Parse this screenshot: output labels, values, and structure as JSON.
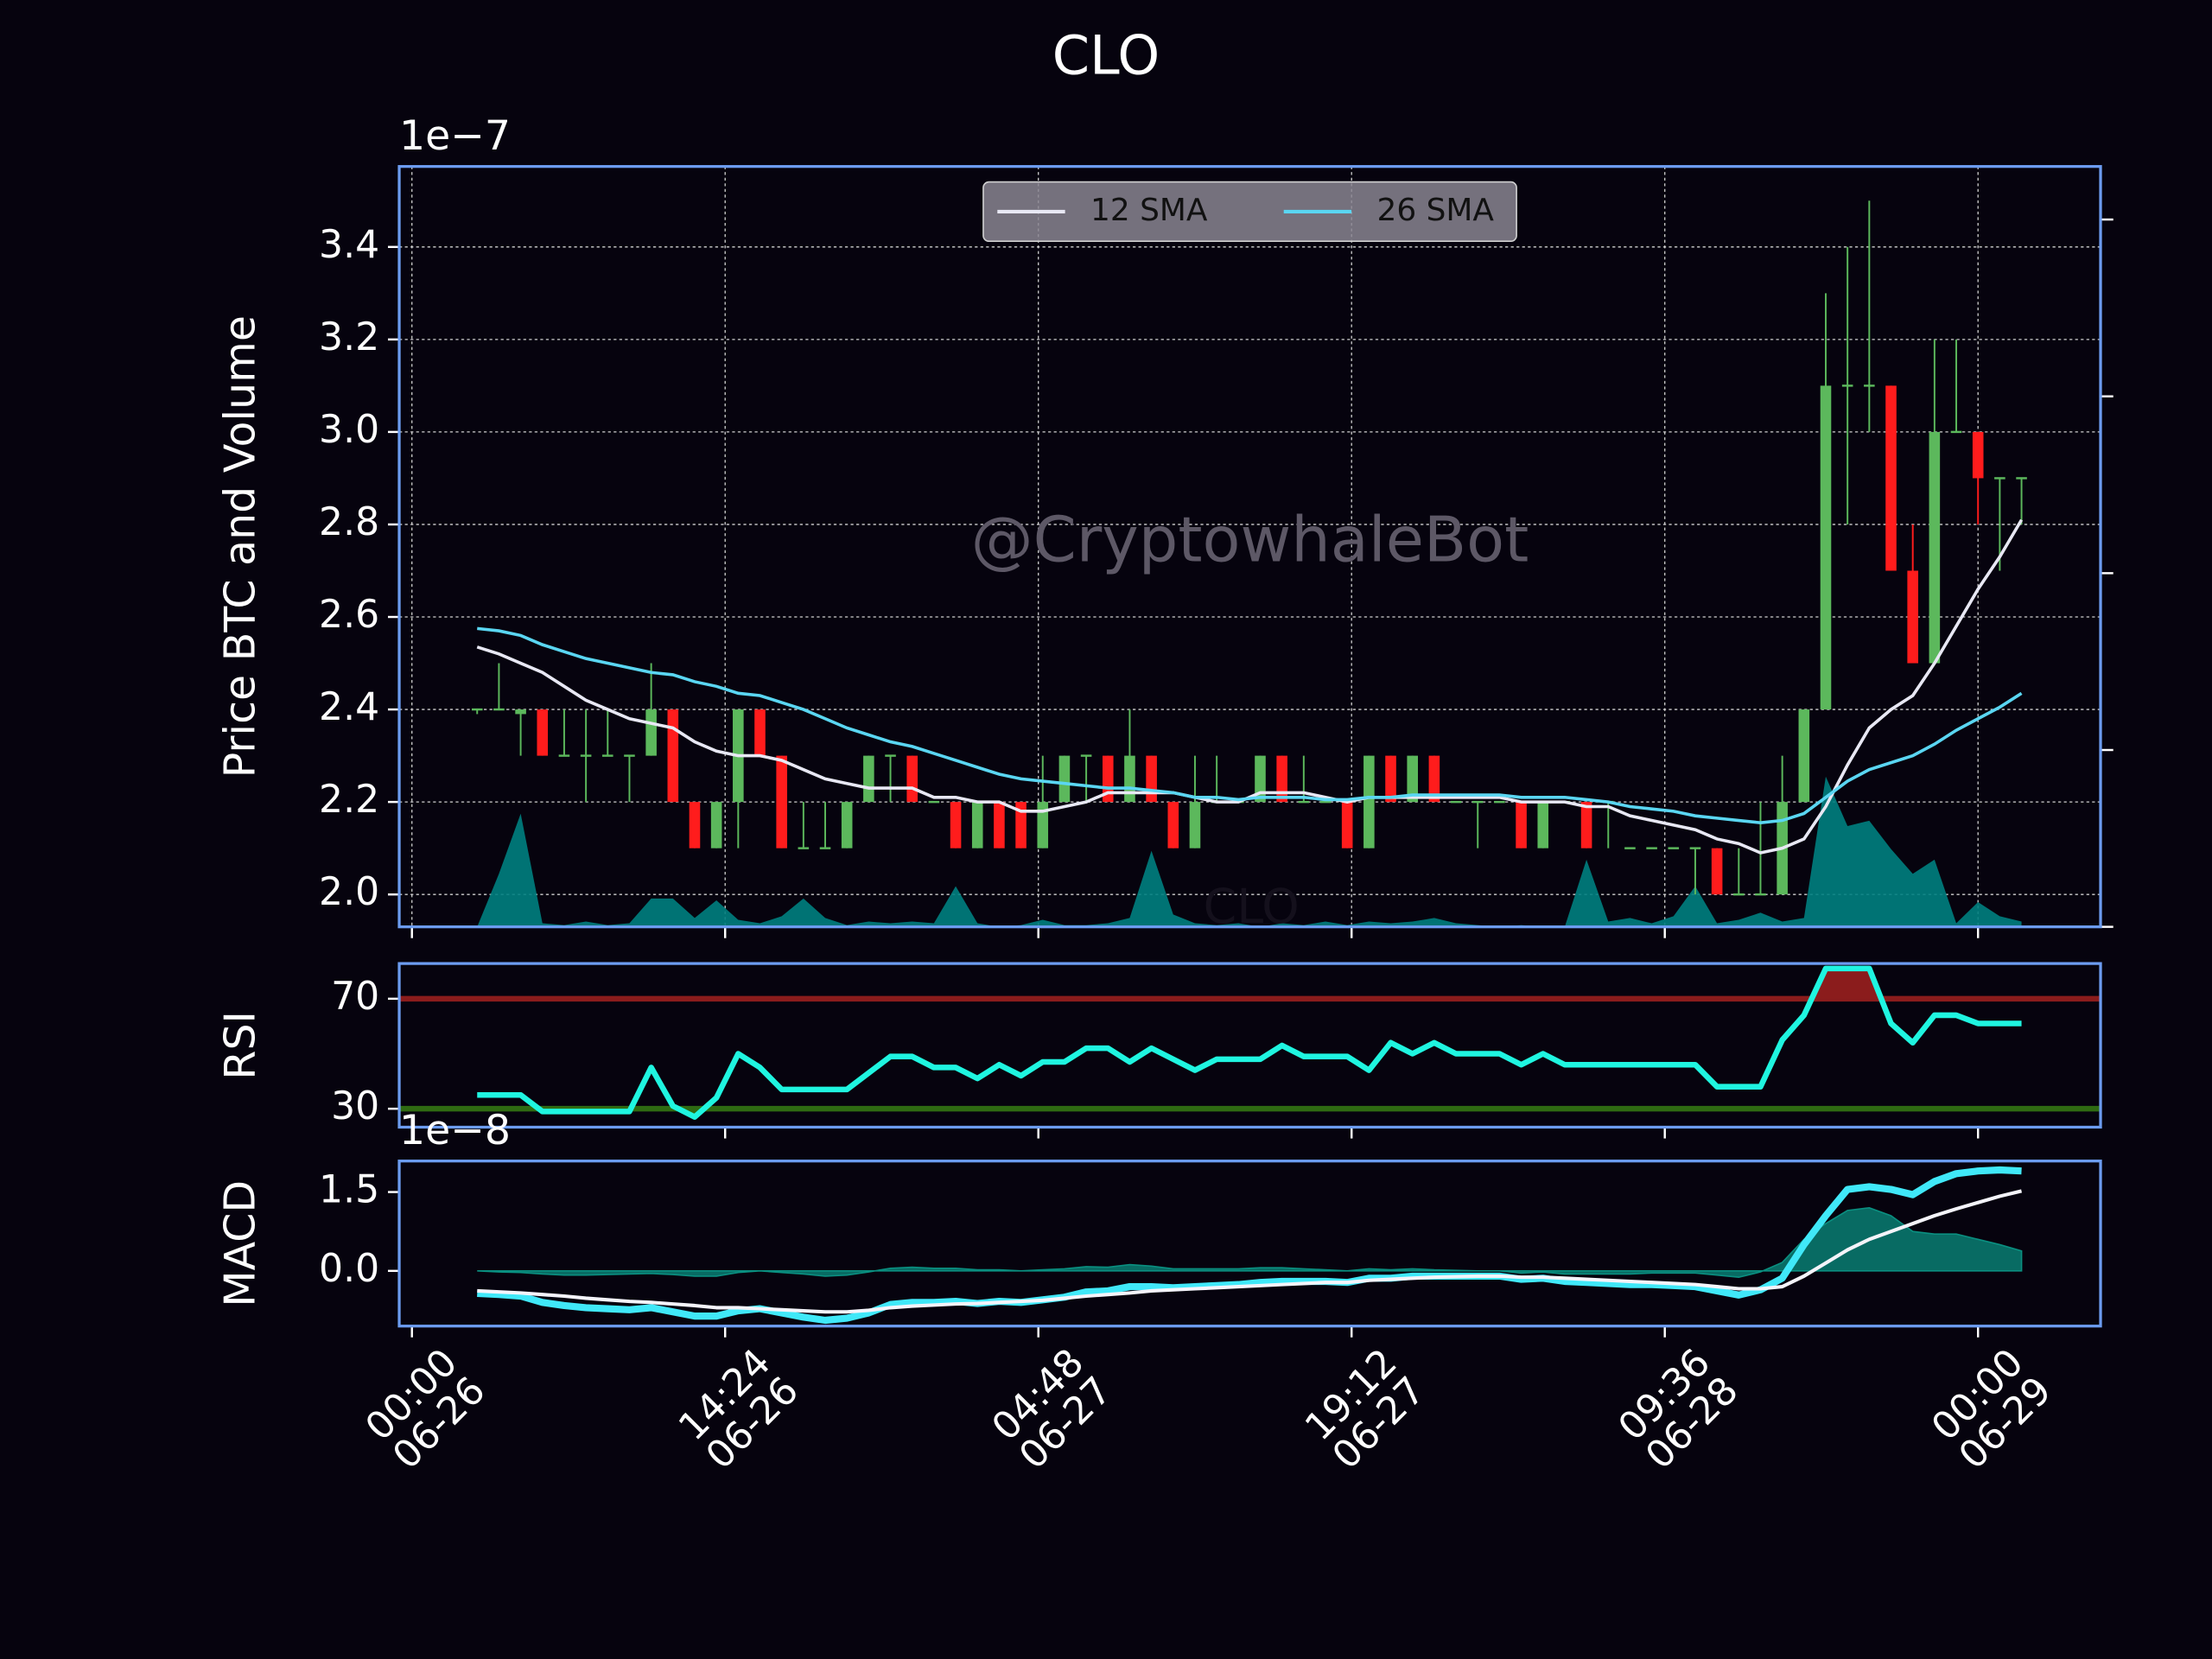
{
  "chart_data": [
    {
      "type": "candlestick",
      "title": "CLO",
      "y_label": "Price BTC and Volume",
      "y_offset_label": "1e−7",
      "watermark": "@CryptowhaleBot",
      "overlay_text": "CLO",
      "x": [
        "06-26 03:00",
        "06-26 04:00",
        "06-26 05:00",
        "06-26 06:00",
        "06-26 07:00",
        "06-26 08:00",
        "06-26 09:00",
        "06-26 10:00",
        "06-26 11:00",
        "06-26 12:00",
        "06-26 13:00",
        "06-26 14:00",
        "06-26 15:00",
        "06-26 16:00",
        "06-26 17:00",
        "06-26 18:00",
        "06-26 19:00",
        "06-26 20:00",
        "06-26 21:00",
        "06-26 22:00",
        "06-26 23:00",
        "06-27 00:00",
        "06-27 01:00",
        "06-27 02:00",
        "06-27 03:00",
        "06-27 04:00",
        "06-27 05:00",
        "06-27 06:00",
        "06-27 07:00",
        "06-27 08:00",
        "06-27 09:00",
        "06-27 10:00",
        "06-27 11:00",
        "06-27 12:00",
        "06-27 13:00",
        "06-27 14:00",
        "06-27 15:00",
        "06-27 16:00",
        "06-27 17:00",
        "06-27 18:00",
        "06-27 19:00",
        "06-27 20:00",
        "06-27 21:00",
        "06-27 22:00",
        "06-27 23:00",
        "06-28 00:00",
        "06-28 01:00",
        "06-28 02:00",
        "06-28 03:00",
        "06-28 04:00",
        "06-28 05:00",
        "06-28 06:00",
        "06-28 07:00",
        "06-28 08:00",
        "06-28 09:00",
        "06-28 10:00",
        "06-28 11:00",
        "06-28 12:00",
        "06-28 13:00",
        "06-28 14:00",
        "06-28 15:00",
        "06-28 16:00",
        "06-28 17:00",
        "06-28 18:00",
        "06-28 19:00",
        "06-28 20:00",
        "06-28 21:00",
        "06-28 22:00",
        "06-28 23:00",
        "06-29 00:00",
        "06-29 01:00",
        "06-29 02:00"
      ],
      "xlim": [
        "06-25 23:25",
        "06-29 05:38"
      ],
      "xticks": [
        {
          "value": "06-26 00:00",
          "label": "00:00\n06-26"
        },
        {
          "value": "06-26 14:24",
          "label": "14:24\n06-26"
        },
        {
          "value": "06-27 04:48",
          "label": "04:48\n06-27"
        },
        {
          "value": "06-27 19:12",
          "label": "19:12\n06-27"
        },
        {
          "value": "06-28 09:36",
          "label": "09:36\n06-28"
        },
        {
          "value": "06-29 00:00",
          "label": "00:00\n06-29"
        }
      ],
      "ylim": [
        1.93,
        3.574
      ],
      "yticks": [
        {
          "value": 2,
          "label": "2.0"
        },
        2.2,
        2.4,
        2.6,
        2.8,
        {
          "value": 3,
          "label": "3.0"
        },
        3.2,
        3.4
      ],
      "grid": true,
      "legend": "upper center",
      "open": [
        2.4,
        2.4,
        2.39,
        2.4,
        2.3,
        2.3,
        2.3,
        2.3,
        2.3,
        2.4,
        2.2,
        2.1,
        2.2,
        2.4,
        2.3,
        2.1,
        2.1,
        2.1,
        2.2,
        2.3,
        2.3,
        2.2,
        2.2,
        2.1,
        2.2,
        2.2,
        2.1,
        2.2,
        2.3,
        2.3,
        2.2,
        2.3,
        2.2,
        2.1,
        2.2,
        2.2,
        2.2,
        2.3,
        2.2,
        2.2,
        2.2,
        2.1,
        2.3,
        2.2,
        2.3,
        2.2,
        2.2,
        2.2,
        2.2,
        2.1,
        2.2,
        2.2,
        2.2,
        2.1,
        2.1,
        2.1,
        2.1,
        2.1,
        2,
        2,
        2,
        2.2,
        2.4,
        3.1,
        3.1,
        3.1,
        2.7,
        2.5,
        3,
        3,
        2.9,
        2.9
      ],
      "high": [
        2.4,
        2.5,
        2.4,
        2.4,
        2.4,
        2.4,
        2.4,
        2.3,
        2.5,
        2.4,
        2.2,
        2.2,
        2.4,
        2.4,
        2.3,
        2.2,
        2.2,
        2.2,
        2.3,
        2.3,
        2.3,
        2.2,
        2.2,
        2.2,
        2.2,
        2.2,
        2.3,
        2.3,
        2.3,
        2.3,
        2.4,
        2.3,
        2.2,
        2.3,
        2.3,
        2.2,
        2.3,
        2.3,
        2.3,
        2.2,
        2.2,
        2.3,
        2.3,
        2.3,
        2.3,
        2.2,
        2.2,
        2.2,
        2.2,
        2.2,
        2.2,
        2.2,
        2.2,
        2.1,
        2.1,
        2.1,
        2.1,
        2.1,
        2.1,
        2.2,
        2.3,
        2.4,
        3.3,
        3.4,
        3.5,
        3.1,
        2.8,
        3.2,
        3.2,
        3,
        2.9,
        2.9
      ],
      "low": [
        2.39,
        2.4,
        2.3,
        2.3,
        2.3,
        2.2,
        2.3,
        2.2,
        2.3,
        2.2,
        2.1,
        2.1,
        2.1,
        2.3,
        2.1,
        2.1,
        2.1,
        2.1,
        2.2,
        2.2,
        2.2,
        2.2,
        2.1,
        2.1,
        2.1,
        2.1,
        2.1,
        2.2,
        2.2,
        2.2,
        2.2,
        2.2,
        2.1,
        2.1,
        2.2,
        2.2,
        2.2,
        2.2,
        2.2,
        2.2,
        2.1,
        2.1,
        2.2,
        2.2,
        2.2,
        2.2,
        2.1,
        2.2,
        2.1,
        2.1,
        2.2,
        2.1,
        2.1,
        2.1,
        2.1,
        2.1,
        2,
        2,
        2,
        2,
        2,
        2.2,
        2.4,
        2.8,
        3,
        2.7,
        2.5,
        2.5,
        3,
        2.8,
        2.7,
        2.8
      ],
      "close": [
        2.4,
        2.4,
        2.4,
        2.3,
        2.3,
        2.3,
        2.3,
        2.3,
        2.4,
        2.2,
        2.1,
        2.2,
        2.4,
        2.3,
        2.1,
        2.1,
        2.1,
        2.2,
        2.3,
        2.3,
        2.2,
        2.2,
        2.1,
        2.2,
        2.1,
        2.1,
        2.2,
        2.3,
        2.3,
        2.2,
        2.3,
        2.2,
        2.1,
        2.2,
        2.2,
        2.2,
        2.3,
        2.2,
        2.2,
        2.2,
        2.1,
        2.3,
        2.2,
        2.3,
        2.2,
        2.2,
        2.2,
        2.2,
        2.1,
        2.2,
        2.2,
        2.1,
        2.2,
        2.1,
        2.1,
        2.1,
        2.1,
        2,
        2,
        2,
        2.2,
        2.4,
        3.1,
        3.1,
        3.1,
        2.7,
        2.5,
        3,
        3,
        2.9,
        2.9,
        2.9
      ],
      "up_color": "#5cb85c",
      "down_color": "#ff1c1c",
      "series": [
        {
          "name": "12 SMA",
          "color": "#e8e8f4",
          "values": [
            2.535,
            2.52,
            2.5,
            2.48,
            2.45,
            2.42,
            2.4,
            2.38,
            2.37,
            2.36,
            2.33,
            2.31,
            2.3,
            2.3,
            2.29,
            2.27,
            2.25,
            2.24,
            2.23,
            2.23,
            2.23,
            2.21,
            2.21,
            2.2,
            2.2,
            2.18,
            2.18,
            2.19,
            2.2,
            2.22,
            2.22,
            2.22,
            2.22,
            2.21,
            2.2,
            2.2,
            2.22,
            2.22,
            2.22,
            2.21,
            2.2,
            2.21,
            2.21,
            2.21,
            2.21,
            2.21,
            2.21,
            2.21,
            2.2,
            2.2,
            2.2,
            2.19,
            2.19,
            2.17,
            2.16,
            2.15,
            2.14,
            2.12,
            2.11,
            2.09,
            2.1,
            2.12,
            2.19,
            2.28,
            2.36,
            2.4,
            2.43,
            2.5,
            2.58,
            2.66,
            2.73,
            2.81
          ]
        },
        {
          "name": "26 SMA",
          "color": "#5ad6f2",
          "values": [
            2.575,
            2.57,
            2.56,
            2.54,
            2.525,
            2.51,
            2.5,
            2.49,
            2.48,
            2.475,
            2.46,
            2.45,
            2.435,
            2.43,
            2.415,
            2.4,
            2.38,
            2.36,
            2.345,
            2.33,
            2.32,
            2.305,
            2.29,
            2.275,
            2.26,
            2.25,
            2.245,
            2.24,
            2.235,
            2.23,
            2.23,
            2.225,
            2.22,
            2.21,
            2.21,
            2.205,
            2.21,
            2.21,
            2.21,
            2.205,
            2.205,
            2.21,
            2.21,
            2.215,
            2.215,
            2.215,
            2.215,
            2.215,
            2.21,
            2.21,
            2.21,
            2.205,
            2.2,
            2.19,
            2.185,
            2.18,
            2.17,
            2.165,
            2.16,
            2.155,
            2.16,
            2.175,
            2.21,
            2.245,
            2.27,
            2.285,
            2.3,
            2.325,
            2.355,
            2.38,
            2.405,
            2.435
          ]
        }
      ],
      "volume": {
        "color": "#008080",
        "values": [
          0,
          0.3,
          0.64,
          0.02,
          0.01,
          0.03,
          0.01,
          0.02,
          0.16,
          0.16,
          0.05,
          0.15,
          0.04,
          0.02,
          0.06,
          0.16,
          0.05,
          0.01,
          0.03,
          0.02,
          0.03,
          0.02,
          0.23,
          0.02,
          0,
          0.01,
          0.04,
          0.01,
          0.01,
          0.02,
          0.05,
          0.43,
          0.07,
          0.02,
          0.01,
          0.02,
          0,
          0.02,
          0.01,
          0.03,
          0.01,
          0.03,
          0.02,
          0.03,
          0.05,
          0.02,
          0.01,
          0,
          0.01,
          0,
          0,
          0.38,
          0.03,
          0.05,
          0.02,
          0.06,
          0.23,
          0.02,
          0.04,
          0.08,
          0.03,
          0.05,
          0.85,
          0.57,
          0.6,
          0.44,
          0.3,
          0.38,
          0.02,
          0.14,
          0.06,
          0.03
        ]
      },
      "y2lim": [
        0,
        4.3
      ],
      "y2ticks": [
        0,
        1,
        2,
        3,
        4
      ]
    },
    {
      "type": "line",
      "y_label": "RSI",
      "ylim": [
        23.3,
        82.8
      ],
      "yticks": [
        30,
        70
      ],
      "hlines": [
        {
          "value": 70,
          "color": "#8b1c1c"
        },
        {
          "value": 30,
          "color": "#2f6a12"
        }
      ],
      "series": [
        {
          "color": "#1ff5e0",
          "linewidth": 4,
          "values": [
            35,
            35,
            35,
            29,
            29,
            29,
            29,
            29,
            45,
            31,
            27,
            34,
            50,
            45,
            37,
            37,
            37,
            37,
            43,
            49,
            49,
            45,
            45,
            41,
            46,
            42,
            47,
            47,
            52,
            52,
            47,
            52,
            48,
            44,
            48,
            48,
            48,
            53,
            49,
            49,
            49,
            44,
            54,
            50,
            54,
            50,
            50,
            50,
            46,
            50,
            46,
            46,
            46,
            46,
            46,
            46,
            46,
            38,
            38,
            38,
            55,
            64,
            81,
            81,
            81,
            61,
            54,
            64,
            64,
            61,
            61,
            61
          ]
        }
      ]
    },
    {
      "type": "line",
      "y_label": "MACD",
      "y_offset_label": "1e−8",
      "ylim": [
        -1.05,
        2.09
      ],
      "yticks": [
        {
          "value": 0,
          "label": "0.0"
        },
        1.5
      ],
      "histogram": {
        "color": "#0a8f80",
        "values": [
          0,
          -0.02,
          -0.03,
          -0.06,
          -0.08,
          -0.08,
          -0.07,
          -0.06,
          -0.05,
          -0.07,
          -0.1,
          -0.1,
          -0.03,
          0,
          -0.03,
          -0.06,
          -0.1,
          -0.08,
          -0.02,
          0.05,
          0.07,
          0.05,
          0.05,
          0.02,
          0.02,
          0,
          0.02,
          0.04,
          0.08,
          0.07,
          0.12,
          0.09,
          0.04,
          0.04,
          0.04,
          0.04,
          0.06,
          0.06,
          0.04,
          0.02,
          0,
          0.04,
          0.02,
          0.04,
          0.02,
          0.01,
          0,
          0,
          -0.04,
          -0.02,
          -0.06,
          -0.06,
          -0.06,
          -0.06,
          -0.04,
          -0.04,
          -0.04,
          -0.08,
          -0.12,
          -0.02,
          0.16,
          0.6,
          0.9,
          1.15,
          1.2,
          1.05,
          0.75,
          0.7,
          0.7,
          0.6,
          0.5,
          0.38
        ]
      },
      "series": [
        {
          "color": "#40e8f8",
          "linewidth": 5,
          "values": [
            -0.43,
            -0.45,
            -0.48,
            -0.6,
            -0.66,
            -0.7,
            -0.72,
            -0.74,
            -0.7,
            -0.78,
            -0.86,
            -0.86,
            -0.76,
            -0.72,
            -0.8,
            -0.88,
            -0.94,
            -0.9,
            -0.8,
            -0.64,
            -0.6,
            -0.6,
            -0.58,
            -0.62,
            -0.58,
            -0.6,
            -0.55,
            -0.5,
            -0.4,
            -0.38,
            -0.3,
            -0.3,
            -0.32,
            -0.3,
            -0.28,
            -0.26,
            -0.22,
            -0.2,
            -0.2,
            -0.2,
            -0.22,
            -0.14,
            -0.14,
            -0.1,
            -0.1,
            -0.1,
            -0.1,
            -0.1,
            -0.16,
            -0.14,
            -0.2,
            -0.22,
            -0.24,
            -0.26,
            -0.26,
            -0.28,
            -0.3,
            -0.38,
            -0.46,
            -0.36,
            -0.14,
            0.5,
            1.05,
            1.55,
            1.6,
            1.55,
            1.45,
            1.7,
            1.85,
            1.9,
            1.92,
            1.9
          ]
        },
        {
          "color": "#f4f4fa",
          "linewidth": 2.5,
          "values": [
            -0.38,
            -0.4,
            -0.42,
            -0.45,
            -0.48,
            -0.52,
            -0.55,
            -0.58,
            -0.6,
            -0.63,
            -0.66,
            -0.7,
            -0.7,
            -0.72,
            -0.74,
            -0.76,
            -0.78,
            -0.78,
            -0.75,
            -0.7,
            -0.67,
            -0.65,
            -0.63,
            -0.62,
            -0.6,
            -0.58,
            -0.56,
            -0.52,
            -0.48,
            -0.45,
            -0.42,
            -0.38,
            -0.36,
            -0.34,
            -0.32,
            -0.3,
            -0.28,
            -0.26,
            -0.24,
            -0.22,
            -0.22,
            -0.18,
            -0.16,
            -0.14,
            -0.12,
            -0.11,
            -0.1,
            -0.1,
            -0.12,
            -0.12,
            -0.14,
            -0.16,
            -0.18,
            -0.2,
            -0.22,
            -0.24,
            -0.26,
            -0.3,
            -0.34,
            -0.34,
            -0.3,
            -0.1,
            0.15,
            0.4,
            0.6,
            0.75,
            0.9,
            1.05,
            1.18,
            1.3,
            1.42,
            1.52
          ]
        }
      ]
    }
  ]
}
